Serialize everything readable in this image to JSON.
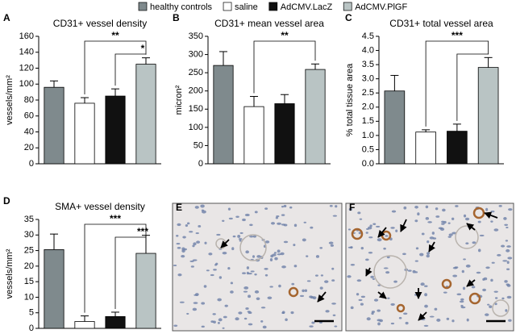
{
  "legend": [
    {
      "name": "healthy controls",
      "color": "#7f8a8d"
    },
    {
      "name": "saline",
      "color": "#ffffff"
    },
    {
      "name": "AdCMV.LacZ",
      "color": "#111111"
    },
    {
      "name": "AdCMV.PlGF",
      "color": "#b9c4c4"
    }
  ],
  "chart_data": [
    {
      "type": "bar",
      "panel": "A",
      "title": "CD31+ vessel density",
      "ylabel": "vessels/mm²",
      "values": [
        96,
        76,
        85,
        125
      ],
      "errors": [
        8,
        7,
        9,
        8
      ],
      "ylim": [
        0,
        160
      ],
      "yticks": [
        0,
        20,
        40,
        60,
        80,
        100,
        120,
        140,
        160
      ],
      "brackets": [
        {
          "from": 1,
          "to": 3,
          "label": "**"
        },
        {
          "from": 2,
          "to": 3,
          "label": "*"
        }
      ]
    },
    {
      "type": "bar",
      "panel": "B",
      "title": "CD31+ mean vessel area",
      "ylabel": "micron²",
      "values": [
        270,
        157,
        165,
        259
      ],
      "errors": [
        38,
        28,
        25,
        15
      ],
      "ylim": [
        0,
        350
      ],
      "yticks": [
        0,
        50,
        100,
        150,
        200,
        250,
        300,
        350
      ],
      "brackets": [
        {
          "from": 1,
          "to": 3,
          "label": "**"
        }
      ]
    },
    {
      "type": "bar",
      "panel": "C",
      "title": "CD31+ total vessel area",
      "ylabel": "% total tissue area",
      "values": [
        2.57,
        1.12,
        1.15,
        3.4
      ],
      "errors": [
        0.55,
        0.08,
        0.25,
        0.35
      ],
      "ylim": [
        0,
        4.5
      ],
      "yticks": [
        {
          "value": 0,
          "label": "0.0"
        },
        0.5,
        {
          "value": 1,
          "label": "1.0"
        },
        1.5,
        {
          "value": 2,
          "label": "2.0"
        },
        2.5,
        {
          "value": 3,
          "label": "3.0"
        },
        3.5,
        {
          "value": 4,
          "label": "4.0"
        },
        4.5
      ],
      "brackets": [
        {
          "from": 1,
          "to": 3,
          "label": "***"
        },
        {
          "from": 2,
          "to": 3
        }
      ]
    },
    {
      "type": "bar",
      "panel": "D",
      "title": "SMA+ vessel density",
      "ylabel": "vessels/mm²",
      "values": [
        25.3,
        2.2,
        3.8,
        24.1
      ],
      "errors": [
        5,
        1.8,
        1.4,
        5.8
      ],
      "ylim": [
        0,
        35
      ],
      "yticks": [
        0,
        5,
        10,
        15,
        20,
        25,
        30,
        35
      ],
      "brackets": [
        {
          "from": 1,
          "to": 3,
          "label": "***"
        },
        {
          "from": 2,
          "to": 3,
          "label": "***"
        }
      ]
    }
  ],
  "images": [
    {
      "panel": "E"
    },
    {
      "panel": "F"
    }
  ]
}
